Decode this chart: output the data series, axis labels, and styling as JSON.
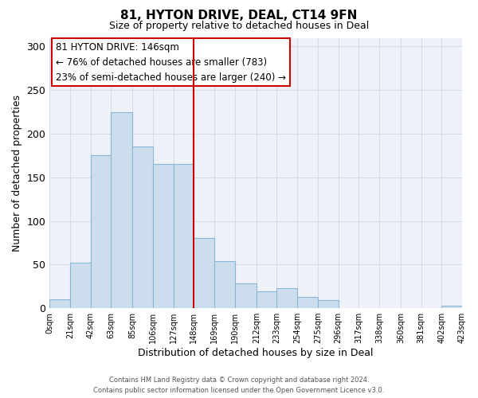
{
  "title": "81, HYTON DRIVE, DEAL, CT14 9FN",
  "subtitle": "Size of property relative to detached houses in Deal",
  "xlabel": "Distribution of detached houses by size in Deal",
  "ylabel": "Number of detached properties",
  "bar_left_edges": [
    0,
    21,
    42,
    63,
    85,
    106,
    127,
    148,
    169,
    190,
    212,
    233,
    254,
    275,
    296,
    317,
    338,
    360,
    381,
    402
  ],
  "bar_widths": [
    21,
    21,
    21,
    22,
    21,
    21,
    21,
    21,
    21,
    22,
    21,
    21,
    21,
    21,
    21,
    21,
    22,
    21,
    21,
    21
  ],
  "bar_heights": [
    10,
    52,
    175,
    225,
    185,
    165,
    165,
    80,
    54,
    28,
    19,
    23,
    13,
    9,
    0,
    0,
    0,
    0,
    0,
    3
  ],
  "bar_color": "#ccdded",
  "bar_edge_color": "#8ab8d4",
  "xtick_labels": [
    "0sqm",
    "21sqm",
    "42sqm",
    "63sqm",
    "85sqm",
    "106sqm",
    "127sqm",
    "148sqm",
    "169sqm",
    "190sqm",
    "212sqm",
    "233sqm",
    "254sqm",
    "275sqm",
    "296sqm",
    "317sqm",
    "338sqm",
    "360sqm",
    "381sqm",
    "402sqm",
    "423sqm"
  ],
  "ytick_values": [
    0,
    50,
    100,
    150,
    200,
    250,
    300
  ],
  "ylim": [
    0,
    310
  ],
  "vline_x": 148,
  "vline_color": "#cc0000",
  "annotation_title": "81 HYTON DRIVE: 146sqm",
  "annotation_line1": "← 76% of detached houses are smaller (783)",
  "annotation_line2": "23% of semi-detached houses are larger (240) →",
  "annotation_box_color": "#cc0000",
  "annotation_fill_color": "#ffffff",
  "footer_line1": "Contains HM Land Registry data © Crown copyright and database right 2024.",
  "footer_line2": "Contains public sector information licensed under the Open Government Licence v3.0.",
  "grid_color": "#d4dce8",
  "bg_color": "#eef2f8"
}
